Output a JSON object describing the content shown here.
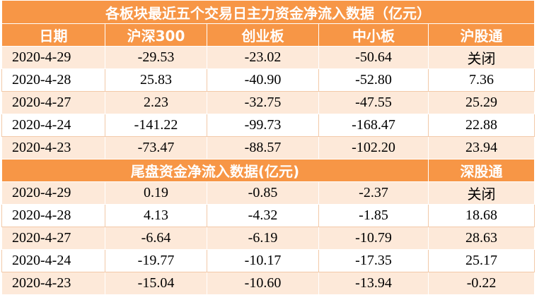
{
  "table": {
    "title": "各板块最近五个交易日主力资金净流入数据（亿元）",
    "header": [
      "日期",
      "沪深300",
      "创业板",
      "中小板",
      "沪股通"
    ],
    "rows": [
      [
        "2020-4-29",
        "-29.53",
        "-23.02",
        "-50.64",
        "关闭"
      ],
      [
        "2020-4-28",
        "25.83",
        "-40.90",
        "-52.80",
        "7.36"
      ],
      [
        "2020-4-27",
        "2.23",
        "-32.75",
        "-47.55",
        "25.29"
      ],
      [
        "2020-4-24",
        "-141.22",
        "-99.73",
        "-168.47",
        "22.88"
      ],
      [
        "2020-4-23",
        "-73.47",
        "-88.57",
        "-102.20",
        "23.94"
      ]
    ],
    "section2": {
      "title": "尾盘资金净流入数据(亿元)",
      "column": "深股通"
    },
    "rows2": [
      [
        "2020-4-29",
        "0.19",
        "-0.85",
        "-2.37",
        "关闭"
      ],
      [
        "2020-4-28",
        "4.13",
        "-4.32",
        "-1.85",
        "18.68"
      ],
      [
        "2020-4-27",
        "-6.64",
        "-6.19",
        "-10.79",
        "28.63"
      ],
      [
        "2020-4-24",
        "-19.77",
        "-10.17",
        "-17.35",
        "25.17"
      ],
      [
        "2020-4-23",
        "-15.04",
        "-10.60",
        "-13.94",
        "-0.22"
      ]
    ]
  }
}
